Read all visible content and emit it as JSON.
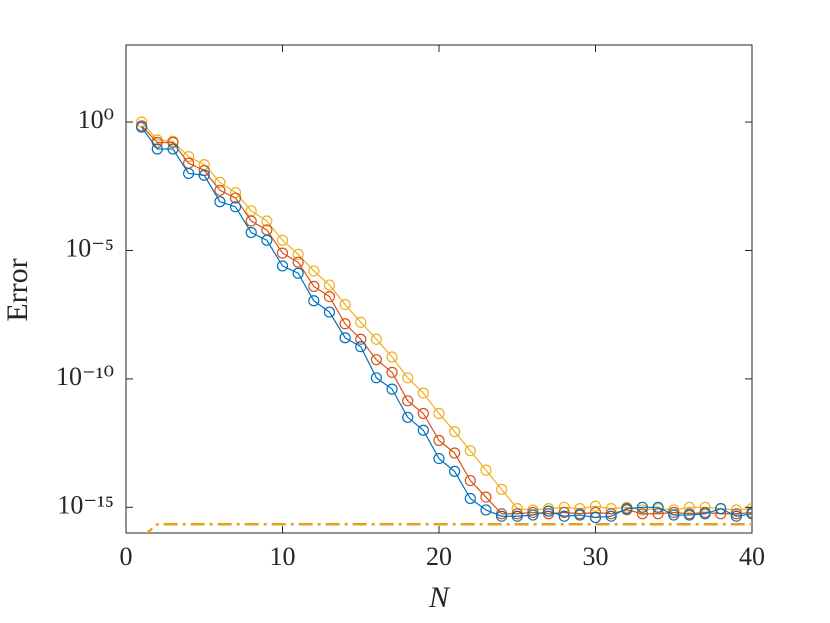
{
  "chart_data": {
    "type": "line",
    "x_label": "N",
    "y_label": "Error",
    "log_y": true,
    "markers": "circle",
    "xlim": [
      0,
      40
    ],
    "xticks": [
      0,
      10,
      20,
      30,
      40
    ],
    "ylim": [
      1e-16,
      1000.0
    ],
    "yticks": [
      {
        "value": 1e-15,
        "label": "10⁻¹⁵"
      },
      {
        "value": 1e-10,
        "label": "10⁻¹⁰"
      },
      {
        "value": 1e-05,
        "label": "10⁻⁵"
      },
      {
        "value": 1,
        "label": "10⁰"
      }
    ],
    "x": [
      1,
      2,
      3,
      4,
      5,
      6,
      7,
      8,
      9,
      10,
      11,
      12,
      13,
      14,
      15,
      16,
      17,
      18,
      19,
      20,
      21,
      22,
      23,
      24,
      25,
      26,
      27,
      28,
      29,
      30,
      31,
      32,
      33,
      34,
      35,
      36,
      37,
      38,
      39,
      40
    ],
    "series": [
      {
        "color": "#edb120",
        "marker": true,
        "values": [
          1.0,
          0.2,
          0.18,
          0.045,
          0.022,
          0.0045,
          0.0018,
          0.00035,
          0.00014,
          2.5e-05,
          7.1e-06,
          1.6e-06,
          4.5e-07,
          7.9e-08,
          1.6e-08,
          3.5e-09,
          7.1e-10,
          1.1e-10,
          2.8e-11,
          4.5e-12,
          8.9e-13,
          1.6e-13,
          2.8e-14,
          5e-15,
          8.9e-16,
          7.9e-16,
          8.9e-16,
          1e-15,
          8.9e-16,
          1.1e-15,
          8.9e-16,
          1e-15,
          7.9e-16,
          8.9e-16,
          7.9e-16,
          1e-15,
          1e-15,
          8.9e-16,
          7.9e-16,
          8.9e-16
        ]
      },
      {
        "color": "#d95319",
        "marker": true,
        "values": [
          0.71,
          0.16,
          0.16,
          0.025,
          0.013,
          0.0022,
          0.0011,
          0.00014,
          6.3e-05,
          7.9e-06,
          3.5e-06,
          4e-07,
          1.6e-07,
          1.4e-08,
          3.5e-09,
          5.6e-10,
          1.8e-10,
          1.4e-11,
          4.5e-12,
          4e-13,
          1.3e-13,
          1.1e-14,
          2.5e-15,
          5.6e-16,
          5.6e-16,
          6.3e-16,
          5.6e-16,
          6.3e-16,
          5.6e-16,
          6.3e-16,
          5.6e-16,
          8e-16,
          5.6e-16,
          5.6e-16,
          6.3e-16,
          5.6e-16,
          6.3e-16,
          5.6e-16,
          5.6e-16,
          6.3e-16
        ]
      },
      {
        "color": "#0072bd",
        "marker": true,
        "values": [
          0.63,
          0.089,
          0.089,
          0.01,
          0.0085,
          0.00079,
          0.0005,
          5e-05,
          2.5e-05,
          2.5e-06,
          1.3e-06,
          1.1e-07,
          4e-08,
          4e-09,
          1.8e-09,
          1.1e-10,
          4e-11,
          3.2e-12,
          1e-12,
          7.9e-14,
          2.5e-14,
          2.2e-15,
          7.9e-16,
          4.5e-16,
          4.5e-16,
          5e-16,
          7.1e-16,
          4.5e-16,
          5e-16,
          4e-16,
          4.5e-16,
          8.9e-16,
          1e-15,
          1e-15,
          5e-16,
          5e-16,
          5.6e-16,
          8.9e-16,
          4.5e-16,
          5.6e-16
        ]
      },
      {
        "color": "#e3a21a",
        "marker": false,
        "dash": "dashdot",
        "values": [
          6.6e-17,
          2.2e-16,
          2.2e-16,
          2.2e-16,
          2.2e-16,
          2.2e-16,
          2.2e-16,
          2.2e-16,
          2.2e-16,
          2.2e-16,
          2.2e-16,
          2.2e-16,
          2.2e-16,
          2.2e-16,
          2.2e-16,
          2.2e-16,
          2.2e-16,
          2.2e-16,
          2.2e-16,
          2.2e-16,
          2.2e-16,
          2.2e-16,
          2.2e-16,
          2.2e-16,
          2.2e-16,
          2.2e-16,
          2.2e-16,
          2.2e-16,
          2.2e-16,
          2.2e-16,
          2.2e-16,
          2.2e-16,
          2.2e-16,
          2.2e-16,
          2.2e-16,
          2.2e-16,
          2.2e-16,
          2.2e-16,
          2.2e-16,
          2.2e-16
        ]
      }
    ]
  }
}
